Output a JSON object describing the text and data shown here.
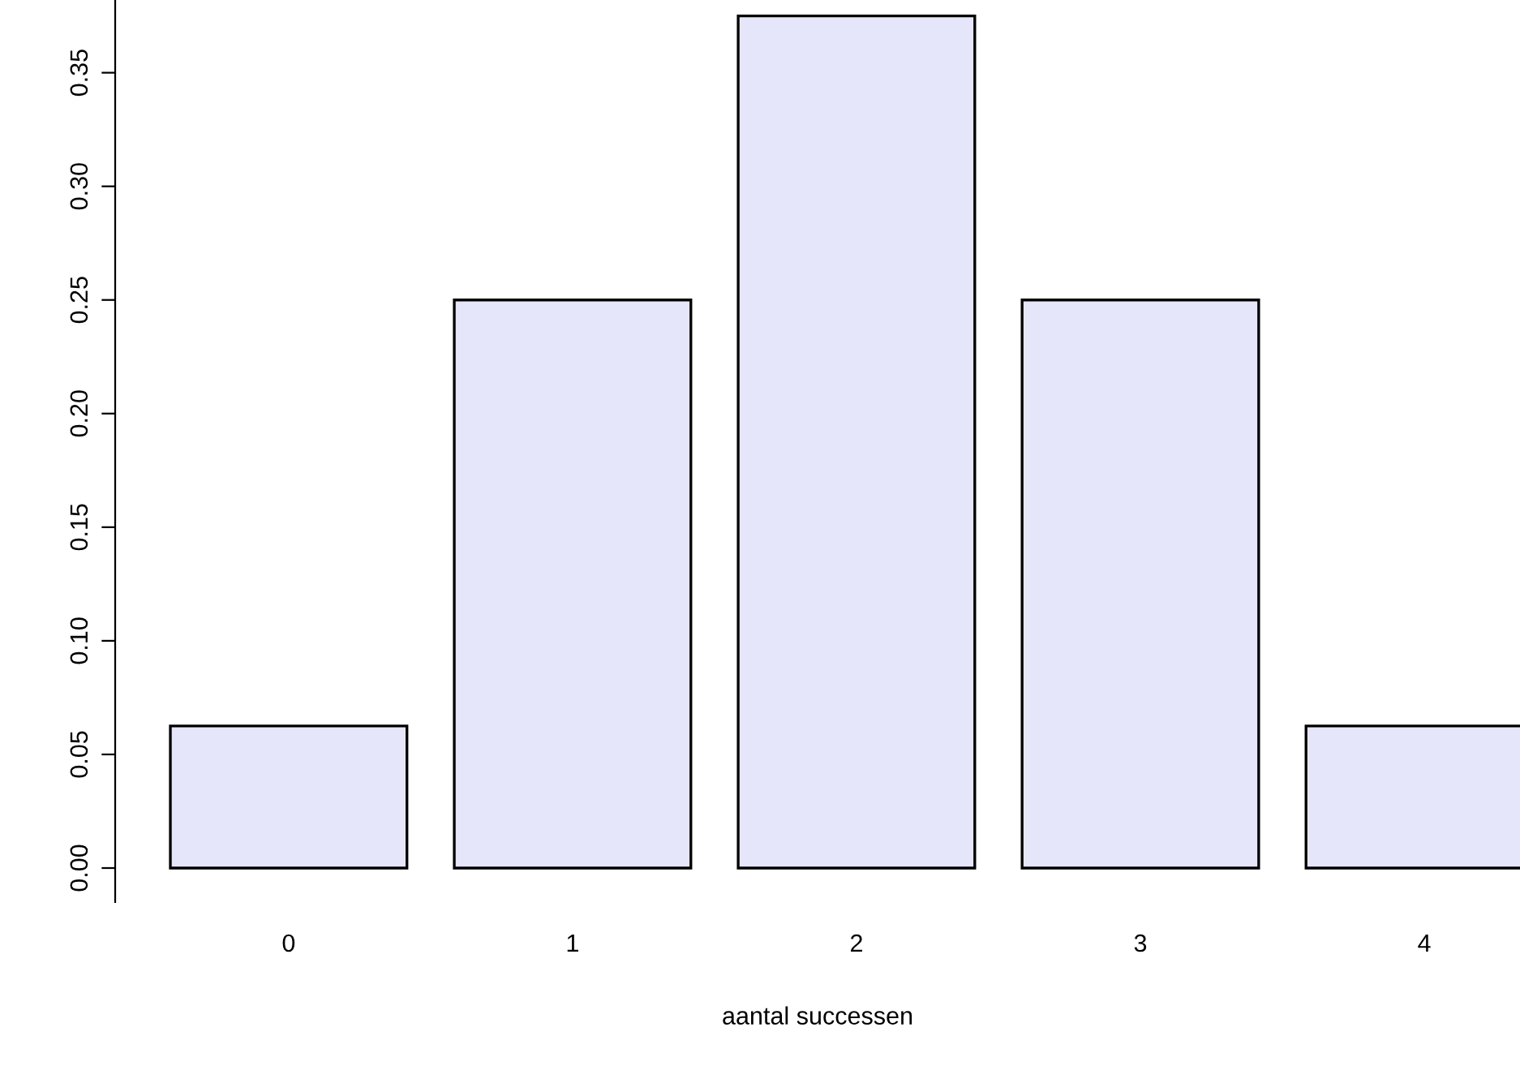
{
  "chart_data": {
    "type": "bar",
    "xlabel": "aantal successen",
    "categories": [
      "0",
      "1",
      "2",
      "3",
      "4"
    ],
    "values": [
      0.0625,
      0.25,
      0.375,
      0.25,
      0.0625
    ],
    "color": "#e6e6fa",
    "ylim": [
      -0.015,
      0.382
    ],
    "yticks": [
      {
        "value": 0,
        "label": "0.00"
      },
      {
        "value": 0.05,
        "label": "0.05"
      },
      {
        "value": 0.1,
        "label": "0.10"
      },
      {
        "value": 0.15,
        "label": "0.15"
      },
      {
        "value": 0.2,
        "label": "0.20"
      },
      {
        "value": 0.25,
        "label": "0.25"
      },
      {
        "value": 0.3,
        "label": "0.30"
      },
      {
        "value": 0.35,
        "label": "0.35"
      }
    ],
    "grid": false
  }
}
